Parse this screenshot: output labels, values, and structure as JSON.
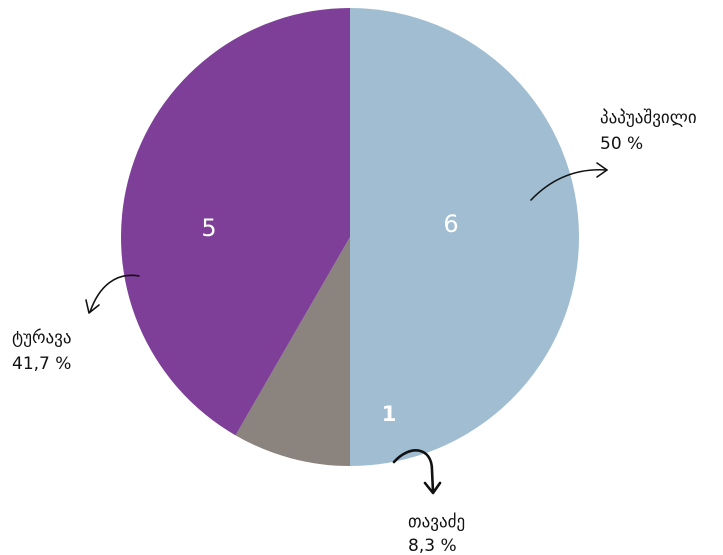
{
  "chart_data": {
    "type": "pie",
    "slices": [
      {
        "name": "პაპუაშვილი",
        "value": 6,
        "percent_label": "50 %",
        "color": "#a0bdd2"
      },
      {
        "name": "თავაძე",
        "value": 1,
        "percent_label": "8,3 %",
        "color": "#8b847e"
      },
      {
        "name": "ტურავა",
        "value": 5,
        "percent_label": "41,7 %",
        "color": "#7d3f97"
      }
    ],
    "title": "",
    "legend": "none"
  }
}
